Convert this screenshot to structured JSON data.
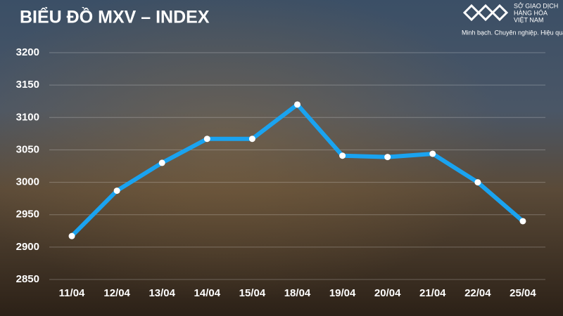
{
  "chart_data": {
    "type": "line",
    "title": "BIỂU ĐỒ MXV – INDEX",
    "categories": [
      "11/04",
      "12/04",
      "13/04",
      "14/04",
      "15/04",
      "18/04",
      "19/04",
      "20/04",
      "21/04",
      "22/04",
      "25/04"
    ],
    "series": [
      {
        "color": "#1aa3f0",
        "values": [
          2917,
          2987,
          3030,
          3067,
          3067,
          3120,
          3041,
          3039,
          3044,
          3000,
          2940
        ]
      }
    ],
    "ylim": [
      2850,
      3200
    ],
    "yticks": [
      2850,
      2900,
      2950,
      3000,
      3050,
      3100,
      3150,
      3200
    ],
    "grid": true
  },
  "brand": {
    "name_lines": [
      "SỞ GIAO DỊCH",
      "HÀNG HÓA",
      "VIỆT NAM"
    ],
    "tagline": "Minh bạch. Chuyên nghiệp. Hiệu quả"
  }
}
